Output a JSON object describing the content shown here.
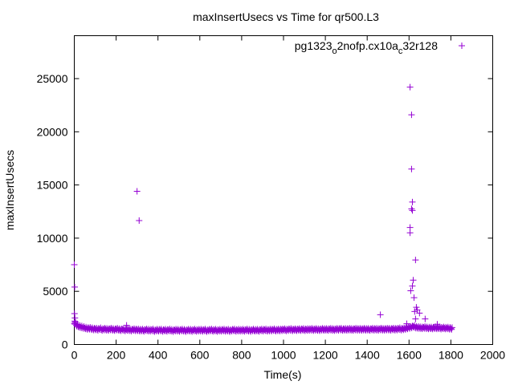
{
  "chart_data": {
    "type": "scatter",
    "title": "maxInsertUsecs vs Time for qr500.L3",
    "xlabel": "Time(s)",
    "ylabel": "maxInsertUsecs",
    "xlim": [
      0,
      2000
    ],
    "ylim": [
      0,
      28000
    ],
    "xticks": [
      0,
      200,
      400,
      600,
      800,
      1000,
      1200,
      1400,
      1600,
      1800,
      2000
    ],
    "yticks": [
      0,
      5000,
      10000,
      15000,
      20000,
      25000
    ],
    "grid": false,
    "legend_placement": "top-right",
    "series": [
      {
        "name": "pg1323_o2nofp.cx10a_c32r128",
        "color": "#9400d3",
        "marker": "plus",
        "band_x_start": 0,
        "band_x_step": 10,
        "band_y": [
          2000,
          1800,
          1700,
          1650,
          1600,
          1550,
          1500,
          1520,
          1480,
          1450,
          1460,
          1420,
          1480,
          1400,
          1450,
          1430,
          1400,
          1460,
          1420,
          1390,
          1450,
          1400,
          1380,
          1420,
          1360,
          1400,
          1380,
          1350,
          1400,
          1370,
          1380,
          1340,
          1360,
          1320,
          1380,
          1350,
          1330,
          1370,
          1300,
          1350,
          1340,
          1360,
          1310,
          1350,
          1320,
          1370,
          1330,
          1300,
          1350,
          1340,
          1320,
          1360,
          1330,
          1300,
          1350,
          1340,
          1310,
          1360,
          1320,
          1340,
          1350,
          1320,
          1360,
          1300,
          1340,
          1370,
          1320,
          1350,
          1310,
          1340,
          1330,
          1360,
          1320,
          1350,
          1300,
          1340,
          1370,
          1320,
          1350,
          1330,
          1350,
          1320,
          1370,
          1340,
          1310,
          1360,
          1330,
          1350,
          1320,
          1370,
          1340,
          1380,
          1330,
          1360,
          1350,
          1390,
          1340,
          1370,
          1360,
          1380,
          1400,
          1360,
          1390,
          1420,
          1370,
          1400,
          1380,
          1410,
          1390,
          1420,
          1380,
          1410,
          1400,
          1430,
          1390,
          1420,
          1400,
          1380,
          1430,
          1410,
          1420,
          1400,
          1440,
          1410,
          1390,
          1430,
          1420,
          1450,
          1400,
          1430,
          1410,
          1440,
          1420,
          1400,
          1450,
          1420,
          1430,
          1410,
          1440,
          1420,
          1430,
          1400,
          1450,
          1420,
          1440,
          1410,
          1460,
          1430,
          1420,
          1450,
          1440,
          1420,
          1460,
          1430,
          1450,
          1480,
          1440,
          1470,
          1500,
          1550,
          1600,
          1650,
          1700,
          1620,
          1600,
          1580,
          1560,
          1600,
          1570,
          1550,
          1560,
          1540,
          1580,
          1550,
          1570,
          1530,
          1560,
          1540,
          1550,
          1520,
          1500
        ],
        "outliers": [
          [
            0,
            7500
          ],
          [
            2,
            5400
          ],
          [
            1,
            2900
          ],
          [
            3,
            2500
          ],
          [
            2,
            2200
          ],
          [
            250,
            1800
          ],
          [
            300,
            14400
          ],
          [
            310,
            11650
          ],
          [
            1463,
            2800
          ],
          [
            1589,
            1950
          ],
          [
            1605,
            24200
          ],
          [
            1612,
            21600
          ],
          [
            1612,
            16500
          ],
          [
            1616,
            13400
          ],
          [
            1612,
            12750
          ],
          [
            1616,
            12600
          ],
          [
            1605,
            11000
          ],
          [
            1605,
            10500
          ],
          [
            1631,
            7950
          ],
          [
            1620,
            6050
          ],
          [
            1616,
            5500
          ],
          [
            1608,
            5050
          ],
          [
            1624,
            4400
          ],
          [
            1635,
            3500
          ],
          [
            1639,
            3250
          ],
          [
            1650,
            2950
          ],
          [
            1627,
            3100
          ],
          [
            1631,
            2400
          ],
          [
            1677,
            2400
          ],
          [
            1735,
            1900
          ]
        ]
      }
    ]
  }
}
